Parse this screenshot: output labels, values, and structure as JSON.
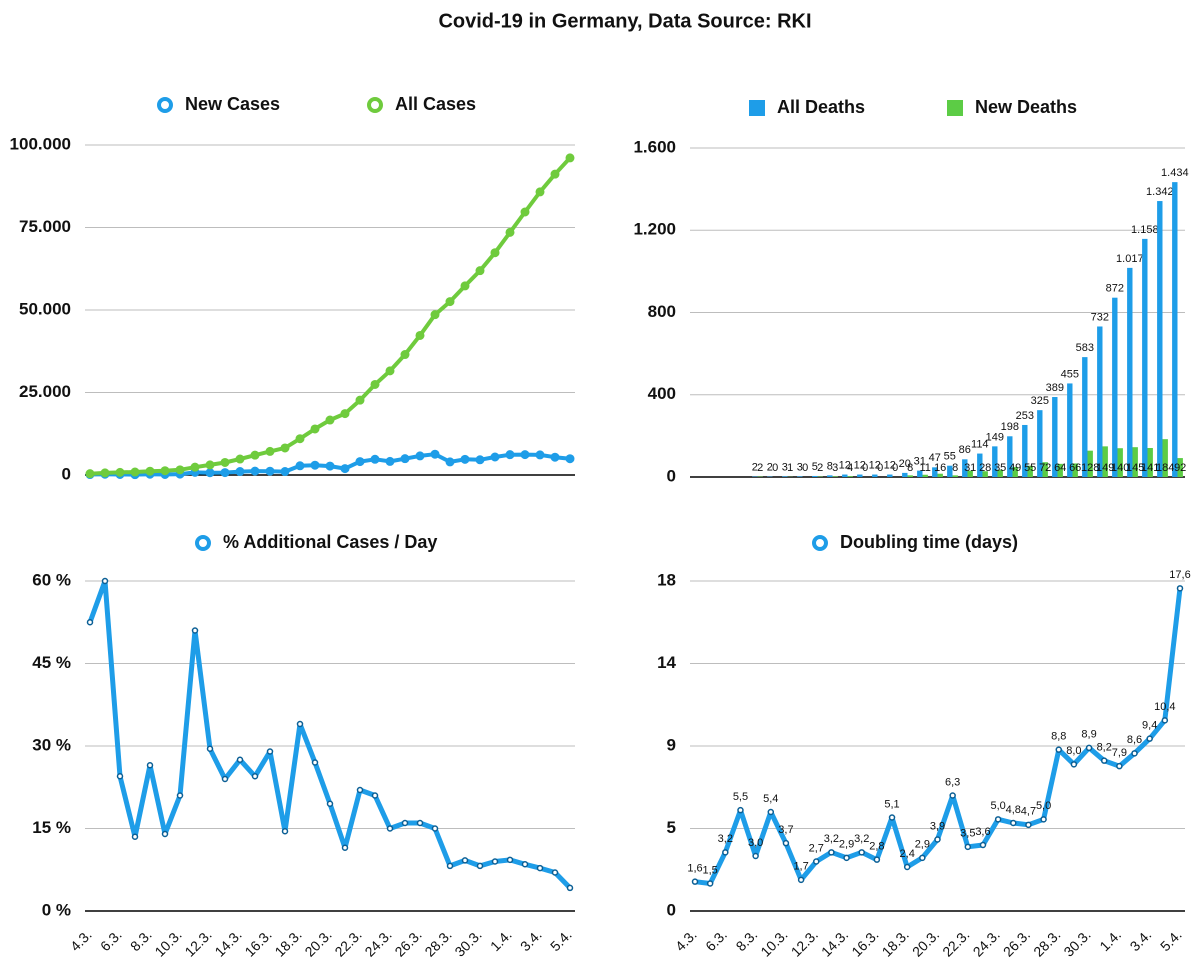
{
  "title": "Covid-19 in Germany, Data Source: RKI",
  "chart_data": [
    {
      "type": "line",
      "series": [
        {
          "name": "New Cases",
          "color": "#1e9de8",
          "values": [
            138,
            239,
            156,
            107,
            237,
            157,
            271,
            802,
            693,
            733,
            1043,
            1174,
            1144,
            1042,
            2801,
            2958,
            2705,
            1948,
            4062,
            4764,
            4118,
            4954,
            5780,
            6294,
            3965,
            4751,
            4615,
            5453,
            6156,
            6174,
            6082,
            5381,
            4933
          ]
        },
        {
          "name": "All Cases",
          "color": "#6fcb3d",
          "values": [
            400,
            639,
            795,
            902,
            1139,
            1296,
            1567,
            2369,
            3062,
            3795,
            4838,
            6012,
            7156,
            8198,
            10999,
            13957,
            16662,
            18610,
            22672,
            27436,
            31554,
            36508,
            42288,
            48582,
            52547,
            57298,
            61913,
            67366,
            73522,
            79696,
            85778,
            91159,
            96092
          ]
        }
      ],
      "ylim": [
        0,
        100000
      ],
      "yticks": [
        0,
        {
          "value": 25000,
          "label": "25.000"
        },
        {
          "value": 50000,
          "label": "50.000"
        },
        {
          "value": 75000,
          "label": "75.000"
        },
        {
          "value": 100000,
          "label": "100.000"
        }
      ],
      "grid": true
    },
    {
      "type": "bar",
      "series": [
        {
          "name": "All Deaths",
          "color": "#1e9de8",
          "values": [
            null,
            null,
            null,
            null,
            2,
            2,
            3,
            3,
            5,
            8,
            12,
            12,
            12,
            12,
            20,
            31,
            47,
            55,
            86,
            114,
            149,
            198,
            253,
            325,
            389,
            455,
            583,
            732,
            872,
            1017,
            1158,
            1342,
            1434
          ],
          "value_labels": [
            null,
            null,
            null,
            null,
            "2",
            "2",
            "3",
            "3",
            "5",
            "8",
            "12",
            "12",
            "12",
            "12",
            "20",
            "31",
            "47",
            "55",
            "86",
            "114",
            "149",
            "198",
            "253",
            "325",
            "389",
            "455",
            "583",
            "732",
            "872",
            "1.017",
            "1.158",
            "1.342",
            "1.434"
          ]
        },
        {
          "name": "New Deaths",
          "color": "#5ccc45",
          "label_color": "#d62c2c",
          "values": [
            null,
            null,
            null,
            null,
            2,
            0,
            1,
            0,
            2,
            3,
            4,
            0,
            0,
            0,
            8,
            11,
            16,
            8,
            31,
            28,
            35,
            49,
            55,
            72,
            64,
            66,
            128,
            149,
            140,
            145,
            141,
            184,
            92
          ]
        }
      ],
      "ylim": [
        0,
        1600
      ],
      "yticks": [
        0,
        400,
        800,
        {
          "value": 1200,
          "label": "1.200"
        },
        {
          "value": 1600,
          "label": "1.600"
        }
      ],
      "grid": true
    },
    {
      "type": "line",
      "categories": [
        "4.3.",
        null,
        "6.3.",
        null,
        "8.3.",
        null,
        "10.3.",
        null,
        "12.3.",
        null,
        "14.3.",
        null,
        "16.3.",
        null,
        "18.3.",
        null,
        "20.3.",
        null,
        "22.3.",
        null,
        "24.3.",
        null,
        "26.3.",
        null,
        "28.3.",
        null,
        "30.3.",
        null,
        "1.4.",
        null,
        "3.4.",
        null,
        "5.4."
      ],
      "series": [
        {
          "name": "% Additional Cases / Day",
          "color": "#1e9de8",
          "values": [
            52.5,
            60,
            24.5,
            13.5,
            26.5,
            14,
            21,
            51,
            29.5,
            24,
            27.5,
            24.5,
            29,
            14.5,
            34,
            27,
            19.5,
            11.5,
            22,
            21,
            15,
            16,
            16,
            15,
            8.2,
            9.2,
            8.2,
            9,
            9.3,
            8.5,
            7.8,
            7,
            4.2
          ]
        }
      ],
      "ylim": [
        0,
        60
      ],
      "yticks": [
        {
          "value": 0,
          "label": "0 %"
        },
        {
          "value": 15,
          "label": "15 %"
        },
        {
          "value": 30,
          "label": "30 %"
        },
        {
          "value": 45,
          "label": "45 %"
        },
        {
          "value": 60,
          "label": "60 %"
        }
      ],
      "grid": true
    },
    {
      "type": "line",
      "categories": [
        "4.3.",
        null,
        "6.3.",
        null,
        "8.3.",
        null,
        "10.3.",
        null,
        "12.3.",
        null,
        "14.3.",
        null,
        "16.3.",
        null,
        "18.3.",
        null,
        "20.3.",
        null,
        "22.3.",
        null,
        "24.3.",
        null,
        "26.3.",
        null,
        "28.3.",
        null,
        "30.3.",
        null,
        "1.4.",
        null,
        "3.4.",
        null,
        "5.4."
      ],
      "series": [
        {
          "name": "Doubling time (days)",
          "color": "#1e9de8",
          "values": [
            1.6,
            1.5,
            3.2,
            5.5,
            3.0,
            5.4,
            3.7,
            1.7,
            2.7,
            3.2,
            2.9,
            3.2,
            2.8,
            5.1,
            2.4,
            2.9,
            3.9,
            6.3,
            3.5,
            3.6,
            5.0,
            4.8,
            4.7,
            5.0,
            8.8,
            8.0,
            8.9,
            8.2,
            7.9,
            8.6,
            9.4,
            10.4,
            17.6
          ],
          "value_labels": [
            "1,6",
            "1,5",
            "3,2",
            "5,5",
            "3,0",
            "5,4",
            "3,7",
            "1,7",
            "2,7",
            "3,2",
            "2,9",
            "3,2",
            "2,8",
            "5,1",
            "2,4",
            "2,9",
            "3,9",
            "6,3",
            "3,5",
            "3,6",
            "5,0",
            "4,8",
            "4,7",
            "5,0",
            "8,8",
            "8,0",
            "8,9",
            "8,2",
            "7,9",
            "8,6",
            "9,4",
            "10,4",
            "17,6"
          ]
        }
      ],
      "ylim": [
        0,
        18
      ],
      "yticks": [
        0,
        {
          "value": 4.5,
          "label": "5"
        },
        9,
        {
          "value": 13.5,
          "label": "14"
        },
        18
      ],
      "grid": true
    }
  ]
}
